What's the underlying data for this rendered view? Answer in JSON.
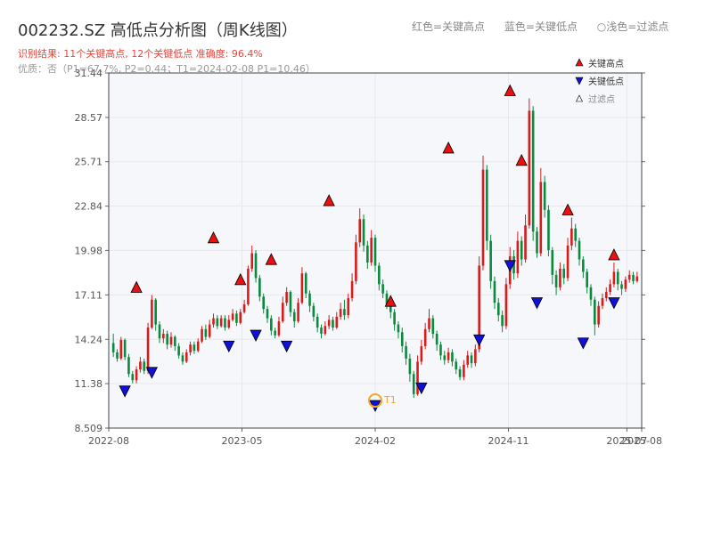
{
  "header": {
    "title": "002232.SZ 高低点分析图（周K线图）",
    "legend_high": "红色=关键高点",
    "legend_low": "蓝色=关键低点",
    "legend_filtered": "浅色=过滤点",
    "summary": "识别结果: 11个关键高点, 12个关键低点  准确度: 96.4%",
    "subtitle": "优质：否（P1=67.7%, P2=0.44；T1=2024-02-08 P1=10.46）"
  },
  "colors": {
    "up": "#d81b1b",
    "down": "#0a8a3c",
    "high_marker": "#e81010",
    "low_marker": "#1010d8",
    "t1": "#f5a623",
    "axis_text": "#555555",
    "grid": "#e6e8ee",
    "plot_bg": "#f5f7fa"
  },
  "chart_data": {
    "type": "candlestick",
    "title": "002232.SZ 高低点分析图（周K线图）",
    "y_ticks": [
      "8.509",
      "11.38",
      "14.24",
      "17.11",
      "19.98",
      "22.84",
      "25.71",
      "28.57",
      "31.44"
    ],
    "ylim": [
      8.509,
      31.44
    ],
    "x_ticks": [
      "2022-08",
      "2023-05",
      "2024-02",
      "2024-11",
      "2025-07",
      "2025-08"
    ],
    "legend": {
      "high": "关键高点",
      "low": "关键低点",
      "filtered": "过滤点",
      "position": "top-right"
    },
    "t1_label": "T1",
    "t1_point": {
      "date": "2024-02-08",
      "price": 10.46
    },
    "key_highs": [
      {
        "date": "2022-10",
        "price": 17.1
      },
      {
        "date": "2023-03",
        "price": 20.3
      },
      {
        "date": "2023-05",
        "price": 17.6
      },
      {
        "date": "2023-07",
        "price": 18.9
      },
      {
        "date": "2023-11",
        "price": 22.7
      },
      {
        "date": "2024-03",
        "price": 16.2
      },
      {
        "date": "2024-07",
        "price": 26.1
      },
      {
        "date": "2024-11",
        "price": 29.8
      },
      {
        "date": "2024-12",
        "price": 25.3
      },
      {
        "date": "2025-03",
        "price": 22.1
      },
      {
        "date": "2025-06",
        "price": 19.2
      }
    ],
    "key_lows": [
      {
        "date": "2022-09",
        "price": 11.4
      },
      {
        "date": "2022-11",
        "price": 12.6
      },
      {
        "date": "2023-04",
        "price": 14.3
      },
      {
        "date": "2023-06",
        "price": 15.0
      },
      {
        "date": "2023-08",
        "price": 14.3
      },
      {
        "date": "2024-02",
        "price": 10.46
      },
      {
        "date": "2024-05",
        "price": 11.6
      },
      {
        "date": "2024-09",
        "price": 14.7
      },
      {
        "date": "2024-11",
        "price": 19.5
      },
      {
        "date": "2025-01",
        "price": 17.1
      },
      {
        "date": "2025-04",
        "price": 14.5
      },
      {
        "date": "2025-06",
        "price": 17.1
      }
    ],
    "candles": [
      [
        14.0,
        13.4,
        14.6,
        13.1
      ],
      [
        13.4,
        13.0,
        13.6,
        12.8
      ],
      [
        13.0,
        14.2,
        14.4,
        12.9
      ],
      [
        14.2,
        13.1,
        14.3,
        12.9
      ],
      [
        13.1,
        12.0,
        13.3,
        11.8
      ],
      [
        12.0,
        11.6,
        12.2,
        11.4
      ],
      [
        11.6,
        12.3,
        12.5,
        11.4
      ],
      [
        12.3,
        12.8,
        13.1,
        12.1
      ],
      [
        12.8,
        12.2,
        13.0,
        12.0
      ],
      [
        12.2,
        15.0,
        15.3,
        12.0
      ],
      [
        15.0,
        16.8,
        17.1,
        14.9
      ],
      [
        16.8,
        15.2,
        16.9,
        14.8
      ],
      [
        15.2,
        14.3,
        15.4,
        14.0
      ],
      [
        14.3,
        14.6,
        14.9,
        14.0
      ],
      [
        14.6,
        13.9,
        14.8,
        13.6
      ],
      [
        13.9,
        14.4,
        14.7,
        13.7
      ],
      [
        14.4,
        13.8,
        14.5,
        13.5
      ],
      [
        13.8,
        13.2,
        14.0,
        13.0
      ],
      [
        13.2,
        12.8,
        13.4,
        12.6
      ],
      [
        12.8,
        13.4,
        13.6,
        12.7
      ],
      [
        13.4,
        13.9,
        14.1,
        13.2
      ],
      [
        13.9,
        13.5,
        14.1,
        13.3
      ],
      [
        13.5,
        14.1,
        14.3,
        13.4
      ],
      [
        14.1,
        14.9,
        15.1,
        14.0
      ],
      [
        14.9,
        14.4,
        15.2,
        14.2
      ],
      [
        14.4,
        15.2,
        15.5,
        14.3
      ],
      [
        15.2,
        15.6,
        15.9,
        15.0
      ],
      [
        15.6,
        15.1,
        15.8,
        14.9
      ],
      [
        15.1,
        15.6,
        15.8,
        15.0
      ],
      [
        15.6,
        15.0,
        15.8,
        14.8
      ],
      [
        15.0,
        15.5,
        15.8,
        14.9
      ],
      [
        15.5,
        15.9,
        16.2,
        15.4
      ],
      [
        15.9,
        15.3,
        16.1,
        15.1
      ],
      [
        15.3,
        16.0,
        16.2,
        15.2
      ],
      [
        16.0,
        16.5,
        16.8,
        15.9
      ],
      [
        16.5,
        18.8,
        19.0,
        16.4
      ],
      [
        18.8,
        19.8,
        20.3,
        18.6
      ],
      [
        19.8,
        18.2,
        20.0,
        17.9
      ],
      [
        18.2,
        17.0,
        18.4,
        16.7
      ],
      [
        17.0,
        16.2,
        17.2,
        15.9
      ],
      [
        16.2,
        15.6,
        16.4,
        15.3
      ],
      [
        15.6,
        14.8,
        15.8,
        14.5
      ],
      [
        14.8,
        14.5,
        15.0,
        14.3
      ],
      [
        14.5,
        15.4,
        15.7,
        14.4
      ],
      [
        15.4,
        16.6,
        17.0,
        15.3
      ],
      [
        16.6,
        17.3,
        17.6,
        16.4
      ],
      [
        17.3,
        16.0,
        17.4,
        15.7
      ],
      [
        16.0,
        15.4,
        16.2,
        15.0
      ],
      [
        15.4,
        16.6,
        16.9,
        15.3
      ],
      [
        16.6,
        18.5,
        18.9,
        16.5
      ],
      [
        18.5,
        17.2,
        18.6,
        16.9
      ],
      [
        17.2,
        16.4,
        17.4,
        16.0
      ],
      [
        16.4,
        15.7,
        16.6,
        15.4
      ],
      [
        15.7,
        15.0,
        15.9,
        14.7
      ],
      [
        15.0,
        14.6,
        15.2,
        14.3
      ],
      [
        14.6,
        15.1,
        15.4,
        14.5
      ],
      [
        15.1,
        15.5,
        15.8,
        14.9
      ],
      [
        15.5,
        15.0,
        15.7,
        14.8
      ],
      [
        15.0,
        15.7,
        16.0,
        14.9
      ],
      [
        15.7,
        16.2,
        16.6,
        15.5
      ],
      [
        16.2,
        15.8,
        16.8,
        15.5
      ],
      [
        15.8,
        16.9,
        17.2,
        15.6
      ],
      [
        16.9,
        18.0,
        18.5,
        16.7
      ],
      [
        18.0,
        20.5,
        21.0,
        17.8
      ],
      [
        20.5,
        22.0,
        22.7,
        20.2
      ],
      [
        22.0,
        20.3,
        22.3,
        19.9
      ],
      [
        20.3,
        19.2,
        20.6,
        18.8
      ],
      [
        19.2,
        20.8,
        21.3,
        19.0
      ],
      [
        20.8,
        19.0,
        21.0,
        18.6
      ],
      [
        19.0,
        17.8,
        19.2,
        17.4
      ],
      [
        17.8,
        17.2,
        18.1,
        16.9
      ],
      [
        17.2,
        16.5,
        17.4,
        16.2
      ],
      [
        16.5,
        16.0,
        16.8,
        15.6
      ],
      [
        16.0,
        15.2,
        16.2,
        14.8
      ],
      [
        15.2,
        14.7,
        15.4,
        14.3
      ],
      [
        14.7,
        13.8,
        15.0,
        13.4
      ],
      [
        13.8,
        13.0,
        14.1,
        12.6
      ],
      [
        13.0,
        12.0,
        13.3,
        11.5
      ],
      [
        12.0,
        10.7,
        12.2,
        10.46
      ],
      [
        10.7,
        12.8,
        13.2,
        10.6
      ],
      [
        12.8,
        13.8,
        14.2,
        12.6
      ],
      [
        13.8,
        14.9,
        15.3,
        13.6
      ],
      [
        14.9,
        15.6,
        16.2,
        14.7
      ],
      [
        15.6,
        14.6,
        15.8,
        14.3
      ],
      [
        14.6,
        13.9,
        14.8,
        13.5
      ],
      [
        13.9,
        13.2,
        14.1,
        12.9
      ],
      [
        13.2,
        12.9,
        13.5,
        12.6
      ],
      [
        12.9,
        13.4,
        13.7,
        12.7
      ],
      [
        13.4,
        12.8,
        13.6,
        12.5
      ],
      [
        12.8,
        12.3,
        13.0,
        12.0
      ],
      [
        12.3,
        11.8,
        12.5,
        11.6
      ],
      [
        11.8,
        12.6,
        12.9,
        11.6
      ],
      [
        12.6,
        13.2,
        13.5,
        12.4
      ],
      [
        13.2,
        12.7,
        13.4,
        12.4
      ],
      [
        12.7,
        13.6,
        13.9,
        12.5
      ],
      [
        13.6,
        19.0,
        19.6,
        13.4
      ],
      [
        19.0,
        25.2,
        26.1,
        18.7
      ],
      [
        25.2,
        20.6,
        25.5,
        20.0
      ],
      [
        20.6,
        18.0,
        21.0,
        17.5
      ],
      [
        18.0,
        16.6,
        18.3,
        16.2
      ],
      [
        16.6,
        15.8,
        16.9,
        15.4
      ],
      [
        15.8,
        15.1,
        16.1,
        14.7
      ],
      [
        15.1,
        17.8,
        18.2,
        14.9
      ],
      [
        17.8,
        19.6,
        20.2,
        17.5
      ],
      [
        19.6,
        18.5,
        20.0,
        18.1
      ],
      [
        18.5,
        20.6,
        21.2,
        18.2
      ],
      [
        20.6,
        19.4,
        20.9,
        19.0
      ],
      [
        19.4,
        21.6,
        22.3,
        19.2
      ],
      [
        21.6,
        29.0,
        29.8,
        21.4
      ],
      [
        29.0,
        21.2,
        29.3,
        20.6
      ],
      [
        21.2,
        19.8,
        21.5,
        19.5
      ],
      [
        19.8,
        24.4,
        25.3,
        19.6
      ],
      [
        24.4,
        22.6,
        24.8,
        22.1
      ],
      [
        22.6,
        20.0,
        22.9,
        19.6
      ],
      [
        20.0,
        18.4,
        20.2,
        17.8
      ],
      [
        18.4,
        17.6,
        18.7,
        17.1
      ],
      [
        17.6,
        18.8,
        19.2,
        17.4
      ],
      [
        18.8,
        18.2,
        19.1,
        17.8
      ],
      [
        18.2,
        20.3,
        20.8,
        18.0
      ],
      [
        20.3,
        21.4,
        22.1,
        20.0
      ],
      [
        21.4,
        20.6,
        21.7,
        20.2
      ],
      [
        20.6,
        19.4,
        20.8,
        19.0
      ],
      [
        19.4,
        18.6,
        19.6,
        18.2
      ],
      [
        18.6,
        17.6,
        18.8,
        17.2
      ],
      [
        17.6,
        16.8,
        17.8,
        16.4
      ],
      [
        16.8,
        15.2,
        17.0,
        14.5
      ],
      [
        15.2,
        16.4,
        16.7,
        15.0
      ],
      [
        16.4,
        16.9,
        17.2,
        16.2
      ],
      [
        16.9,
        17.3,
        17.6,
        16.7
      ],
      [
        17.3,
        17.8,
        18.1,
        17.1
      ],
      [
        17.8,
        18.6,
        19.2,
        17.6
      ],
      [
        18.6,
        17.8,
        18.8,
        17.4
      ],
      [
        17.8,
        17.5,
        18.0,
        17.1
      ],
      [
        17.5,
        18.1,
        18.3,
        17.3
      ],
      [
        18.1,
        18.4,
        18.7,
        17.9
      ],
      [
        18.4,
        18.0,
        18.6,
        17.8
      ],
      [
        18.0,
        18.3,
        18.6,
        17.9
      ]
    ]
  }
}
